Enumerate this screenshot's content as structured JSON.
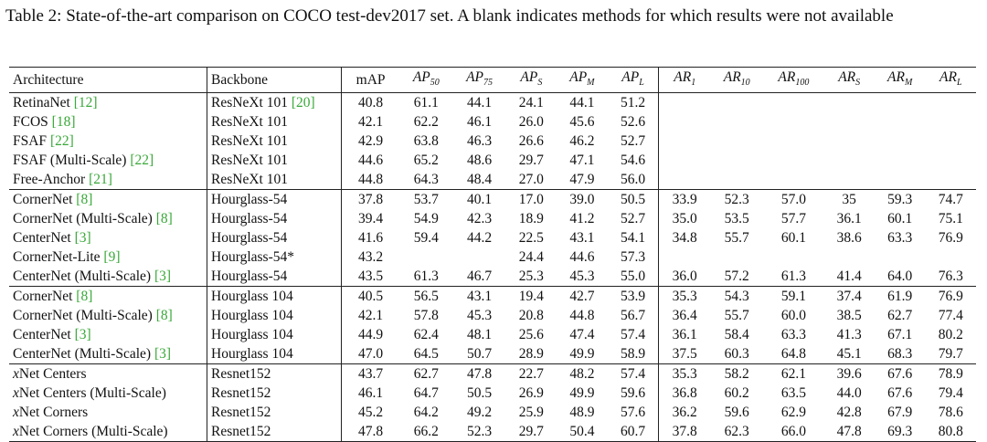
{
  "caption": "Table 2: State-of-the-art comparison on COCO test-dev2017 set. A blank indicates methods for which results were not available",
  "headers": {
    "architecture": "Architecture",
    "backbone": "Backbone",
    "map": "mAP",
    "metrics": [
      {
        "base": "AP",
        "sub": "50"
      },
      {
        "base": "AP",
        "sub": "75"
      },
      {
        "base": "AP",
        "sub": "S"
      },
      {
        "base": "AP",
        "sub": "M"
      },
      {
        "base": "AP",
        "sub": "L"
      },
      {
        "base": "AR",
        "sub": "1"
      },
      {
        "base": "AR",
        "sub": "10"
      },
      {
        "base": "AR",
        "sub": "100"
      },
      {
        "base": "AR",
        "sub": "S"
      },
      {
        "base": "AR",
        "sub": "M"
      },
      {
        "base": "AR",
        "sub": "L"
      }
    ]
  },
  "groups": [
    {
      "rows": [
        {
          "arch": "RetinaNet",
          "ref": "[12]",
          "backbone": "ResNeXt 101",
          "bbref": "[20]",
          "values": [
            "40.8",
            "61.1",
            "44.1",
            "24.1",
            "44.1",
            "51.2",
            "",
            "",
            "",
            "",
            "",
            ""
          ]
        },
        {
          "arch": "FCOS",
          "ref": "[18]",
          "backbone": "ResNeXt 101",
          "bbref": "",
          "values": [
            "42.1",
            "62.2",
            "46.1",
            "26.0",
            "45.6",
            "52.6",
            "",
            "",
            "",
            "",
            "",
            ""
          ]
        },
        {
          "arch": "FSAF",
          "ref": "[22]",
          "backbone": "ResNeXt 101",
          "bbref": "",
          "values": [
            "42.9",
            "63.8",
            "46.3",
            "26.6",
            "46.2",
            "52.7",
            "",
            "",
            "",
            "",
            "",
            ""
          ]
        },
        {
          "arch": "FSAF (Multi-Scale)",
          "ref": "[22]",
          "backbone": "ResNeXt 101",
          "bbref": "",
          "values": [
            "44.6",
            "65.2",
            "48.6",
            "29.7",
            "47.1",
            "54.6",
            "",
            "",
            "",
            "",
            "",
            ""
          ]
        },
        {
          "arch": "Free-Anchor",
          "ref": "[21]",
          "backbone": "ResNeXt 101",
          "bbref": "",
          "values": [
            "44.8",
            "64.3",
            "48.4",
            "27.0",
            "47.9",
            "56.0",
            "",
            "",
            "",
            "",
            "",
            ""
          ]
        }
      ]
    },
    {
      "rows": [
        {
          "arch": "CornerNet",
          "ref": "[8]",
          "backbone": "Hourglass-54",
          "bbref": "",
          "values": [
            "37.8",
            "53.7",
            "40.1",
            "17.0",
            "39.0",
            "50.5",
            "33.9",
            "52.3",
            "57.0",
            "35",
            "59.3",
            "74.7"
          ]
        },
        {
          "arch": "CornerNet (Multi-Scale)",
          "ref": "[8]",
          "backbone": "Hourglass-54",
          "bbref": "",
          "values": [
            "39.4",
            "54.9",
            "42.3",
            "18.9",
            "41.2",
            "52.7",
            "35.0",
            "53.5",
            "57.7",
            "36.1",
            "60.1",
            "75.1"
          ]
        },
        {
          "arch": "CenterNet",
          "ref": "[3]",
          "backbone": "Hourglass-54",
          "bbref": "",
          "values": [
            "41.6",
            "59.4",
            "44.2",
            "22.5",
            "43.1",
            "54.1",
            "34.8",
            "55.7",
            "60.1",
            "38.6",
            "63.3",
            "76.9"
          ]
        },
        {
          "arch": "CornerNet-Lite",
          "ref": "[9]",
          "backbone": "Hourglass-54*",
          "bbref": "",
          "values": [
            "43.2",
            "",
            "",
            "24.4",
            "44.6",
            "57.3",
            "",
            "",
            "",
            "",
            "",
            ""
          ]
        },
        {
          "arch": "CenterNet (Multi-Scale)",
          "ref": "[3]",
          "backbone": "Hourglass-54",
          "bbref": "",
          "values": [
            "43.5",
            "61.3",
            "46.7",
            "25.3",
            "45.3",
            "55.0",
            "36.0",
            "57.2",
            "61.3",
            "41.4",
            "64.0",
            "76.3"
          ]
        }
      ]
    },
    {
      "rows": [
        {
          "arch": "CornerNet",
          "ref": "[8]",
          "backbone": "Hourglass 104",
          "bbref": "",
          "values": [
            "40.5",
            "56.5",
            "43.1",
            "19.4",
            "42.7",
            "53.9",
            "35.3",
            "54.3",
            "59.1",
            "37.4",
            "61.9",
            "76.9"
          ]
        },
        {
          "arch": "CornerNet (Multi-Scale)",
          "ref": "[8]",
          "backbone": "Hourglass 104",
          "bbref": "",
          "values": [
            "42.1",
            "57.8",
            "45.3",
            "20.8",
            "44.8",
            "56.7",
            "36.4",
            "55.7",
            "60.0",
            "38.5",
            "62.7",
            "77.4"
          ]
        },
        {
          "arch": "CenterNet",
          "ref": "[3]",
          "backbone": "Hourglass 104",
          "bbref": "",
          "values": [
            "44.9",
            "62.4",
            "48.1",
            "25.6",
            "47.4",
            "57.4",
            "36.1",
            "58.4",
            "63.3",
            "41.3",
            "67.1",
            "80.2"
          ]
        },
        {
          "arch": "CenterNet (Multi-Scale)",
          "ref": "[3]",
          "backbone": "Hourglass 104",
          "bbref": "",
          "values": [
            "47.0",
            "64.5",
            "50.7",
            "28.9",
            "49.9",
            "58.9",
            "37.5",
            "60.3",
            "64.8",
            "45.1",
            "68.3",
            "79.7"
          ]
        }
      ]
    },
    {
      "rows": [
        {
          "xprefix": "x",
          "arch": "Net Centers",
          "ref": "",
          "backbone": "Resnet152",
          "bbref": "",
          "values": [
            "43.7",
            "62.7",
            "47.8",
            "22.7",
            "48.2",
            "57.4",
            "35.3",
            "58.2",
            "62.1",
            "39.6",
            "67.6",
            "78.9"
          ]
        },
        {
          "xprefix": "x",
          "arch": "Net Centers (Multi-Scale)",
          "ref": "",
          "backbone": "Resnet152",
          "bbref": "",
          "values": [
            "46.1",
            "64.7",
            "50.5",
            "26.9",
            "49.9",
            "59.6",
            "36.8",
            "60.2",
            "63.5",
            "44.0",
            "67.6",
            "79.4"
          ]
        },
        {
          "xprefix": "x",
          "arch": "Net Corners",
          "ref": "",
          "backbone": "Resnet152",
          "bbref": "",
          "values": [
            "45.2",
            "64.2",
            "49.2",
            "25.9",
            "48.9",
            "57.6",
            "36.2",
            "59.6",
            "62.9",
            "42.8",
            "67.9",
            "78.6"
          ]
        },
        {
          "xprefix": "x",
          "arch": "Net Corners (Multi-Scale)",
          "ref": "",
          "backbone": "Resnet152",
          "bbref": "",
          "bold": true,
          "values": [
            "47.8",
            "66.2",
            "52.3",
            "29.7",
            "50.4",
            "60.7",
            "37.8",
            "62.3",
            "66.0",
            "47.8",
            "69.3",
            "80.8"
          ]
        }
      ]
    }
  ]
}
